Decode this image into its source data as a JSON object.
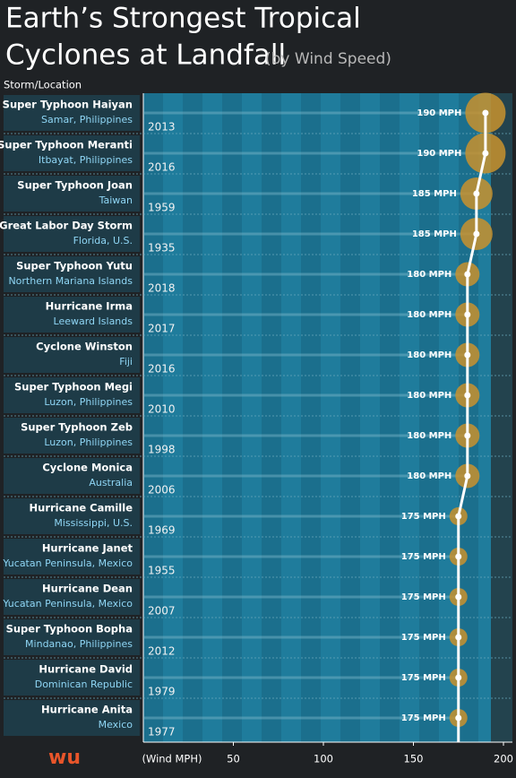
{
  "chart_data": {
    "type": "lollipop",
    "title": [
      "Earth’s Strongest Tropical",
      "Cyclones at Landfall"
    ],
    "subtitle": "(by Wind Speed)",
    "column_header": "Storm/Location",
    "x_label": "(Wind MPH)",
    "logo": "wu",
    "categories": [
      "Super Typhoon Haiyan",
      "Super Typhoon Meranti",
      "Super Typhoon Joan",
      "Great Labor Day Storm",
      "Super Typhoon Yutu",
      "Hurricane Irma",
      "Cyclone Winston",
      "Super Typhoon Megi",
      "Super Typhoon Zeb",
      "Cyclone Monica",
      "Hurricane Camille",
      "Hurricane Janet",
      "Hurricane Dean",
      "Super Typhoon Bopha",
      "Hurricane David",
      "Hurricane Anita"
    ],
    "locations": [
      "Samar, Philippines",
      "Itbayat, Philippines",
      "Taiwan",
      "Florida, U.S.",
      "Northern Mariana Islands",
      "Leeward Islands",
      "Fiji",
      "Luzon, Philippines",
      "Luzon, Philippines",
      "Australia",
      "Mississippi, U.S.",
      "Yucatan Peninsula, Mexico",
      "Yucatan Peninsula, Mexico",
      "Mindanao, Philippines",
      "Dominican Republic",
      "Mexico"
    ],
    "years": [
      "2013",
      "2016",
      "1959",
      "1935",
      "2018",
      "2017",
      "2016",
      "2010",
      "1998",
      "2006",
      "1969",
      "1955",
      "2007",
      "2012",
      "1979",
      "1977"
    ],
    "values": [
      190,
      190,
      185,
      185,
      180,
      180,
      180,
      180,
      180,
      180,
      175,
      175,
      175,
      175,
      175,
      175
    ],
    "value_labels": [
      "190 MPH",
      "190 MPH",
      "185 MPH",
      "185 MPH",
      "180 MPH",
      "180 MPH",
      "180 MPH",
      "180 MPH",
      "180 MPH",
      "180 MPH",
      "175 MPH",
      "175 MPH",
      "175 MPH",
      "175 MPH",
      "175 MPH",
      "175 MPH"
    ],
    "color": "#c8922e",
    "xlim": [
      0,
      200
    ],
    "xticks": [
      50,
      100,
      150,
      200
    ]
  }
}
